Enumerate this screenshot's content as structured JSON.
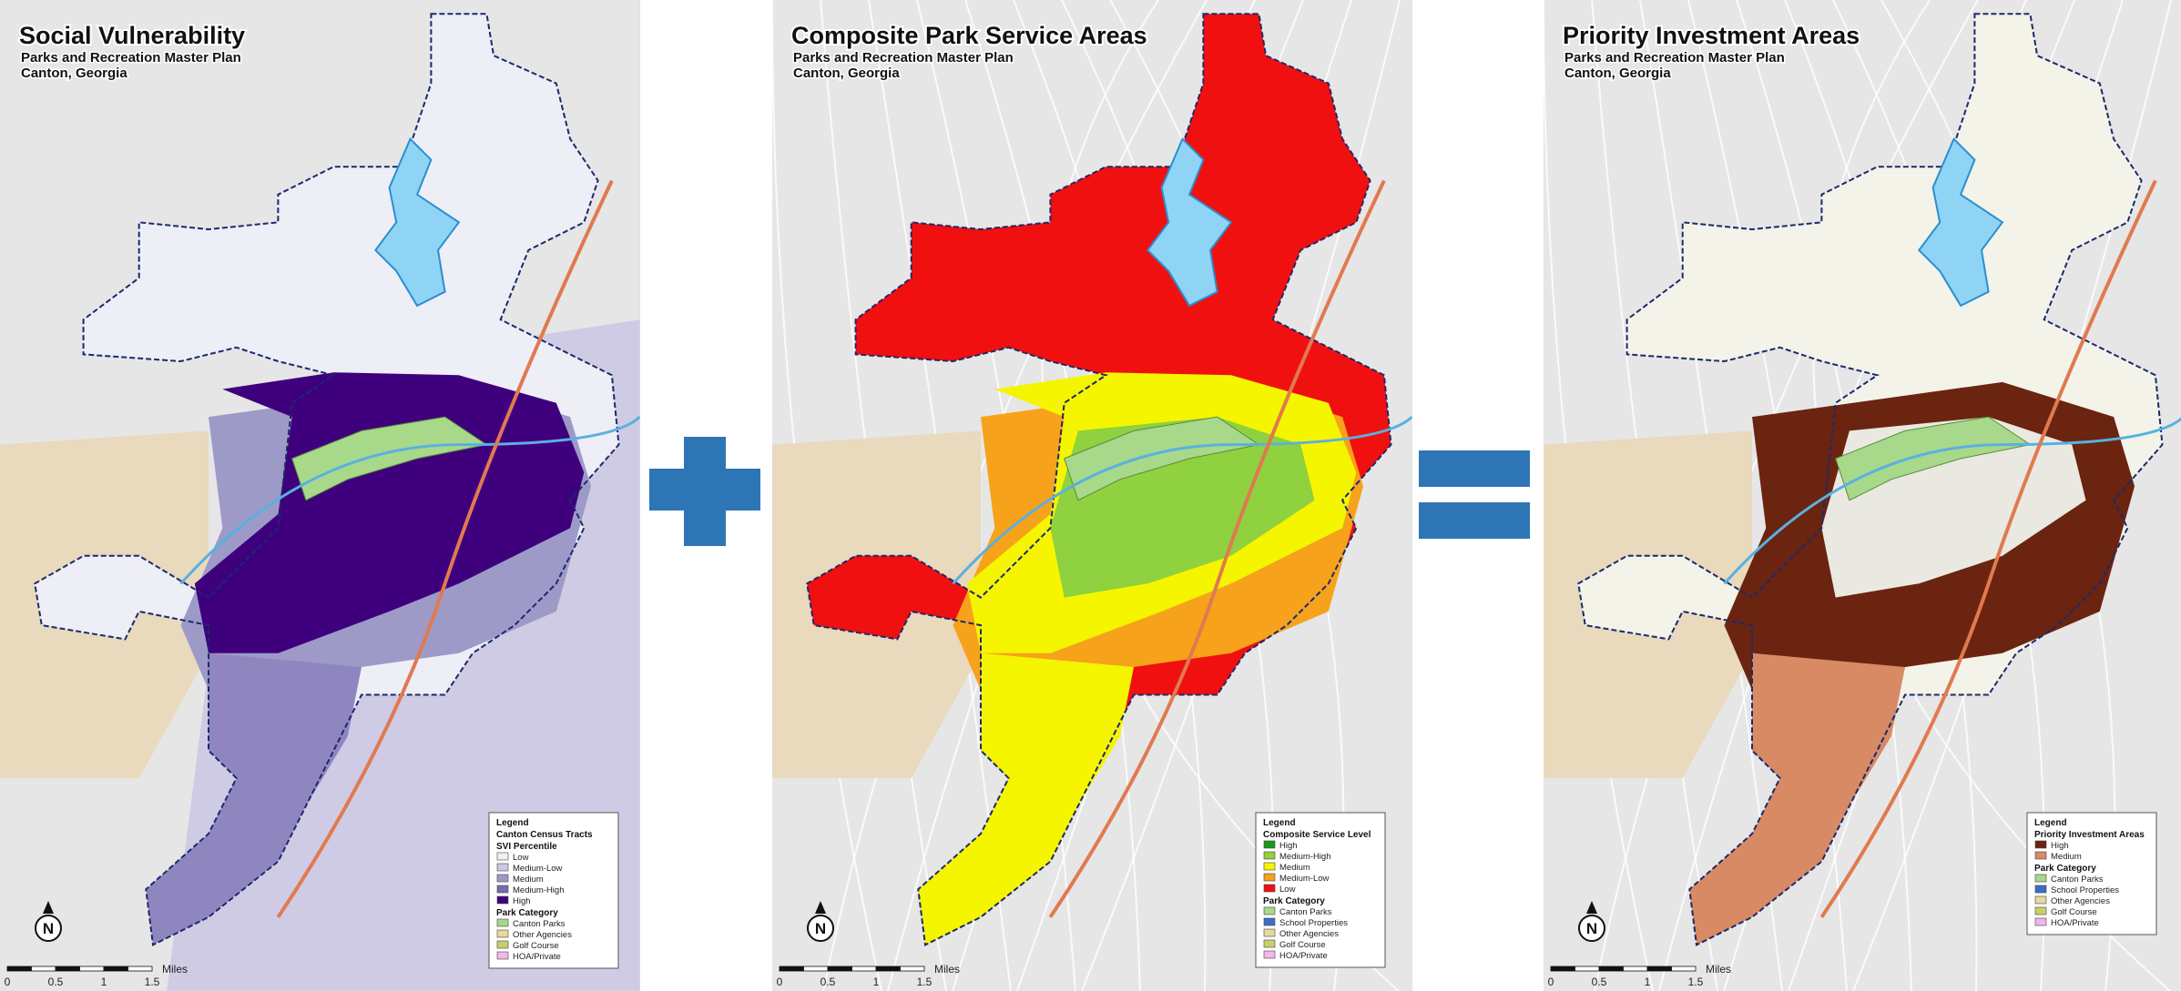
{
  "panels": [
    {
      "title": "Social Vulnerability",
      "subtitle": "Parks and Recreation Master Plan",
      "location": "Canton, Georgia",
      "north": "N",
      "legend": {
        "heading": "Legend",
        "groups": [
          {
            "title": "Canton Census Tracts",
            "items": []
          },
          {
            "title": "SVI Percentile",
            "items": [
              {
                "label": "Low",
                "color": "#f2f0f7"
              },
              {
                "label": "Medium-Low",
                "color": "#cbc9e2"
              },
              {
                "label": "Medium",
                "color": "#9e9ac8"
              },
              {
                "label": "Medium-High",
                "color": "#756bb1"
              },
              {
                "label": "High",
                "color": "#3f007d"
              }
            ]
          },
          {
            "title": "Park Category",
            "items": [
              {
                "label": "Canton Parks",
                "color": "#a8d88a"
              },
              {
                "label": "Other Agencies",
                "color": "#e8d7a0"
              },
              {
                "label": "Golf Course",
                "color": "#c8cf6a"
              },
              {
                "label": "HOA/Private",
                "color": "#f0b8e8"
              }
            ]
          }
        ]
      },
      "scale": {
        "ticks": [
          "0",
          "0.5",
          "1",
          "1.5"
        ],
        "unit": "Miles"
      }
    },
    {
      "title": "Composite Park Service Areas",
      "subtitle": "Parks and Recreation Master Plan",
      "location": "Canton, Georgia",
      "north": "N",
      "legend": {
        "heading": "Legend",
        "groups": [
          {
            "title": "Composite Service Level",
            "items": [
              {
                "label": "High",
                "color": "#1a9a1a"
              },
              {
                "label": "Medium-High",
                "color": "#8fd13f"
              },
              {
                "label": "Medium",
                "color": "#f5f500"
              },
              {
                "label": "Medium-Low",
                "color": "#f7a21b"
              },
              {
                "label": "Low",
                "color": "#f01010"
              }
            ]
          },
          {
            "title": "Park Category",
            "items": [
              {
                "label": "Canton Parks",
                "color": "#a8d88a"
              },
              {
                "label": "School Properties",
                "color": "#3a6fc4"
              },
              {
                "label": "Other Agencies",
                "color": "#e8d7a0"
              },
              {
                "label": "Golf Course",
                "color": "#c8cf6a"
              },
              {
                "label": "HOA/Private",
                "color": "#f0b8e8"
              }
            ]
          }
        ]
      },
      "scale": {
        "ticks": [
          "0",
          "0.5",
          "1",
          "1.5"
        ],
        "unit": "Miles"
      }
    },
    {
      "title": "Priority Investment Areas",
      "subtitle": "Parks and Recreation Master Plan",
      "location": "Canton, Georgia",
      "north": "N",
      "legend": {
        "heading": "Legend",
        "groups": [
          {
            "title": "Priority Investment Areas",
            "items": [
              {
                "label": "High",
                "color": "#6b2410"
              },
              {
                "label": "Medium",
                "color": "#d88a64"
              }
            ]
          },
          {
            "title": "Park Category",
            "items": [
              {
                "label": "Canton Parks",
                "color": "#a8d88a"
              },
              {
                "label": "School Properties",
                "color": "#3a6fc4"
              },
              {
                "label": "Other Agencies",
                "color": "#e8d7a0"
              },
              {
                "label": "Golf Course",
                "color": "#c8cf6a"
              },
              {
                "label": "HOA/Private",
                "color": "#f0b8e8"
              }
            ]
          }
        ]
      },
      "scale": {
        "ticks": [
          "0",
          "0.5",
          "1",
          "1.5"
        ],
        "unit": "Miles"
      }
    }
  ]
}
